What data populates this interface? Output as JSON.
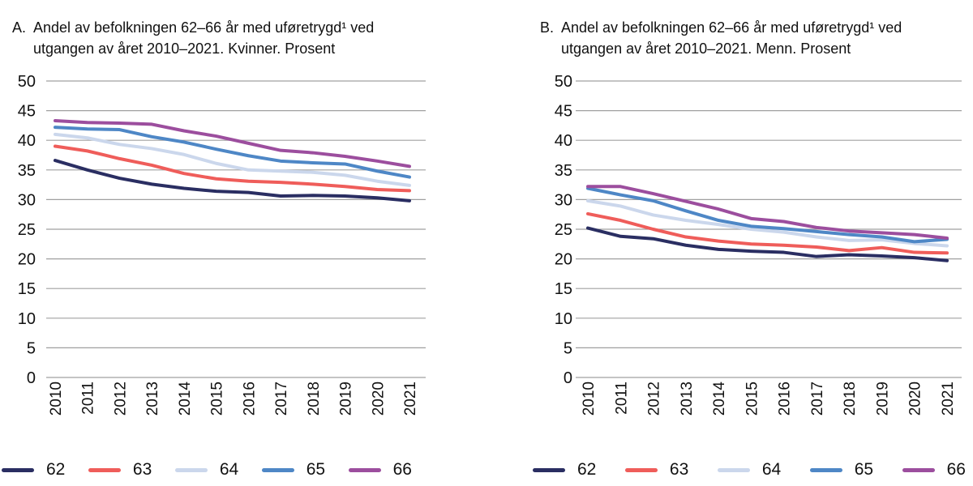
{
  "page": {
    "background": "#ffffff"
  },
  "colors": {
    "grid": "#a0a0a0",
    "text": "#111111"
  },
  "chart_data": [
    {
      "id": "A",
      "type": "line",
      "title_prefix": "A.",
      "title": "Andel av befolkningen 62–66 år med uføretrygd¹ ved utgangen av året 2010–2021. Kvinner. Prosent",
      "title_line1": "Andel av befolkningen 62–66 år med uføretrygd¹ ved",
      "title_line2": "utgangen av året 2010–2021. Kvinner. Prosent",
      "categories": [
        "2010",
        "2011",
        "2012",
        "2013",
        "2014",
        "2015",
        "2016",
        "2017",
        "2018",
        "2019",
        "2020",
        "2021"
      ],
      "ylim": [
        0,
        50
      ],
      "yticks": [
        0,
        5,
        10,
        15,
        20,
        25,
        30,
        35,
        40,
        45,
        50
      ],
      "grid": true,
      "legend_position": "bottom",
      "series": [
        {
          "name": "62",
          "color": "#2A2E62",
          "values": [
            36.6,
            35.0,
            33.6,
            32.6,
            31.9,
            31.4,
            31.2,
            30.6,
            30.7,
            30.6,
            30.3,
            29.8
          ]
        },
        {
          "name": "63",
          "color": "#EF5D5A",
          "values": [
            39.0,
            38.2,
            36.9,
            35.8,
            34.4,
            33.5,
            33.1,
            32.9,
            32.6,
            32.2,
            31.7,
            31.5
          ]
        },
        {
          "name": "64",
          "color": "#CBD7EC",
          "values": [
            41.0,
            40.4,
            39.3,
            38.6,
            37.6,
            36.1,
            35.0,
            34.8,
            34.6,
            34.1,
            33.1,
            32.4
          ]
        },
        {
          "name": "65",
          "color": "#4E87C6",
          "values": [
            42.2,
            41.9,
            41.8,
            40.6,
            39.7,
            38.5,
            37.4,
            36.5,
            36.2,
            36.0,
            34.8,
            33.8
          ]
        },
        {
          "name": "66",
          "color": "#9C4E9E",
          "values": [
            43.3,
            43.0,
            42.9,
            42.7,
            41.6,
            40.7,
            39.5,
            38.3,
            37.9,
            37.3,
            36.5,
            35.6
          ]
        }
      ]
    },
    {
      "id": "B",
      "type": "line",
      "title_prefix": "B.",
      "title": "Andel av befolkningen 62–66 år med uføretrygd¹ ved utgangen av året 2010–2021. Menn. Prosent",
      "title_line1": "Andel av befolkningen 62–66 år med uføretrygd¹ ved",
      "title_line2": "utgangen av året 2010–2021. Menn. Prosent",
      "categories": [
        "2010",
        "2011",
        "2012",
        "2013",
        "2014",
        "2015",
        "2016",
        "2017",
        "2018",
        "2019",
        "2020",
        "2021"
      ],
      "ylim": [
        0,
        50
      ],
      "yticks": [
        0,
        5,
        10,
        15,
        20,
        25,
        30,
        35,
        40,
        45,
        50
      ],
      "grid": true,
      "legend_position": "bottom",
      "series": [
        {
          "name": "62",
          "color": "#2A2E62",
          "values": [
            25.2,
            23.8,
            23.4,
            22.3,
            21.6,
            21.3,
            21.1,
            20.4,
            20.7,
            20.5,
            20.2,
            19.7
          ]
        },
        {
          "name": "63",
          "color": "#EF5D5A",
          "values": [
            27.6,
            26.5,
            25.0,
            23.7,
            23.0,
            22.5,
            22.3,
            22.0,
            21.4,
            21.9,
            21.1,
            21.0
          ]
        },
        {
          "name": "64",
          "color": "#CBD7EC",
          "values": [
            29.8,
            28.9,
            27.4,
            26.5,
            25.8,
            25.0,
            24.5,
            23.7,
            23.1,
            23.2,
            22.6,
            22.2
          ]
        },
        {
          "name": "65",
          "color": "#4E87C6",
          "values": [
            31.9,
            30.8,
            29.8,
            28.1,
            26.5,
            25.5,
            25.1,
            24.6,
            24.1,
            23.7,
            22.9,
            23.3
          ]
        },
        {
          "name": "66",
          "color": "#9C4E9E",
          "values": [
            32.2,
            32.2,
            31.0,
            29.7,
            28.4,
            26.8,
            26.3,
            25.3,
            24.7,
            24.4,
            24.1,
            23.5
          ]
        }
      ]
    }
  ]
}
